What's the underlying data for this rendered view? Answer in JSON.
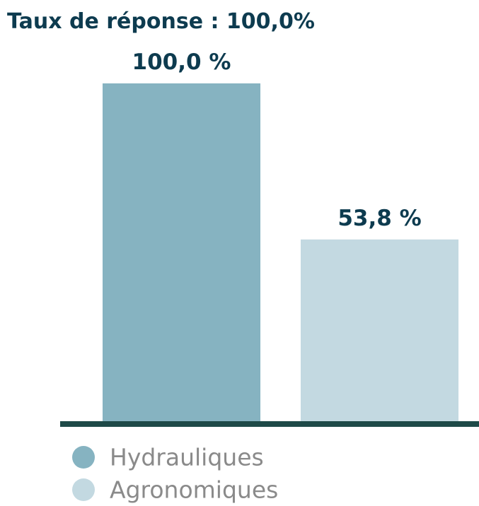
{
  "chart_data": {
    "type": "bar",
    "title": "Taux de réponse : 100,0%",
    "categories": [
      "Hydrauliques",
      "Agronomiques"
    ],
    "values": [
      100,
      53.8
    ],
    "value_labels": [
      "100,0 %",
      "53,8 %"
    ],
    "colors": [
      "#86b3c1",
      "#c3d9e1"
    ],
    "ylim": [
      0,
      100
    ]
  }
}
